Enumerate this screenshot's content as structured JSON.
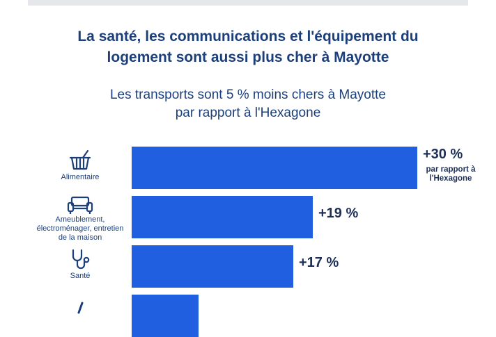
{
  "title": "La santé, les communications et l'équipement du\nlogement sont aussi plus cher à Mayotte",
  "subtitle": "Les transports sont 5 % moins chers à Mayotte\npar rapport à l'Hexagone",
  "colors": {
    "bar": "#1f5fe0",
    "title": "#1c3f7a"
  },
  "chart_data": {
    "type": "bar",
    "orientation": "horizontal",
    "categories": [
      "Alimentaire",
      "Ameublement, électroménager, entretien de la maison",
      "Santé",
      ""
    ],
    "values": [
      30,
      19,
      17,
      7
    ],
    "value_labels": [
      "+30 %",
      "+19 %",
      "+17 %",
      ""
    ],
    "annotation": "par rapport à\nl'Hexagone",
    "icons": [
      "basket-icon",
      "sofa-icon",
      "stethoscope-icon",
      "phone-icon"
    ],
    "unit": "%",
    "xlim": [
      0,
      30
    ]
  }
}
